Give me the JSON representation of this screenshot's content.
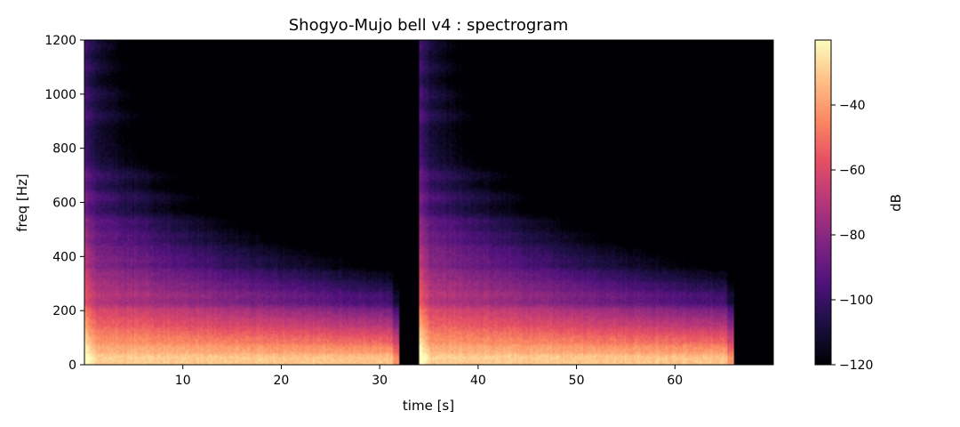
{
  "chart_data": {
    "type": "heatmap",
    "title": "Shogyo-Mujo bell v4 : spectrogram",
    "xlabel": "time [s]",
    "ylabel": "freq [Hz]",
    "xlim": [
      0,
      70
    ],
    "ylim": [
      0,
      1200
    ],
    "xticks": [
      10,
      20,
      30,
      40,
      50,
      60
    ],
    "yticks": [
      0,
      200,
      400,
      600,
      800,
      1000,
      1200
    ],
    "colormap": "magma",
    "colorbar": {
      "label": "dB",
      "range": [
        -120,
        -20
      ],
      "ticks": [
        -120,
        -100,
        -80,
        -60,
        -40
      ]
    },
    "events": [
      {
        "start": 0,
        "end": 32
      },
      {
        "start": 34,
        "end": 66
      }
    ],
    "silence_db": -120,
    "harmonics_hz": [
      30,
      65,
      100,
      130,
      165,
      200,
      260,
      300,
      340,
      390,
      430,
      480,
      530,
      620,
      700,
      920,
      1000,
      1100,
      1180
    ]
  }
}
